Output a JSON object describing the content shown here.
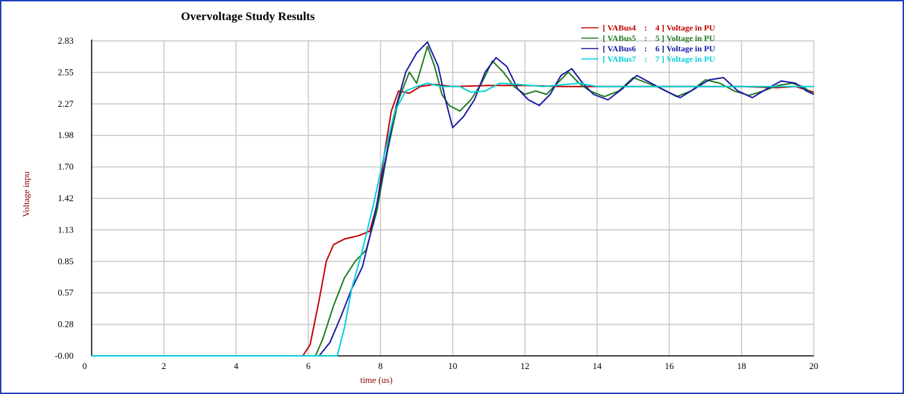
{
  "chart_data": {
    "type": "line",
    "title": "Overvoltage Study Results",
    "xlabel": "time (us)",
    "ylabel": "Voltage inpu",
    "xlim": [
      0,
      20
    ],
    "ylim": [
      -0.0,
      2.83
    ],
    "x_ticks": [
      0,
      2,
      4,
      6,
      8,
      10,
      12,
      14,
      16,
      18,
      20
    ],
    "y_ticks": [
      "-0.00",
      "0.28",
      "0.57",
      "0.85",
      "1.13",
      "1.42",
      "1.70",
      "1.98",
      "2.27",
      "2.55",
      "2.83"
    ],
    "grid": true,
    "legend_position": "top-right",
    "series": [
      {
        "name": "[ VABus4    :    4 ] Voltage in PU",
        "color": "#c00000",
        "points": [
          [
            0,
            0
          ],
          [
            5.85,
            0
          ],
          [
            6.05,
            0.1
          ],
          [
            6.3,
            0.5
          ],
          [
            6.5,
            0.85
          ],
          [
            6.7,
            1.0
          ],
          [
            7.0,
            1.05
          ],
          [
            7.4,
            1.08
          ],
          [
            7.7,
            1.12
          ],
          [
            7.9,
            1.35
          ],
          [
            8.1,
            1.8
          ],
          [
            8.3,
            2.2
          ],
          [
            8.5,
            2.38
          ],
          [
            8.8,
            2.36
          ],
          [
            9.1,
            2.42
          ],
          [
            9.5,
            2.44
          ],
          [
            10,
            2.42
          ],
          [
            11,
            2.43
          ],
          [
            12,
            2.43
          ],
          [
            13,
            2.42
          ],
          [
            14,
            2.42
          ],
          [
            15,
            2.42
          ],
          [
            16,
            2.42
          ],
          [
            17,
            2.42
          ],
          [
            18,
            2.42
          ],
          [
            19,
            2.41
          ],
          [
            19.5,
            2.42
          ],
          [
            20,
            2.37
          ]
        ]
      },
      {
        "name": "[ VABus5    :    5 ] Voltage in PU",
        "color": "#1f7a1f",
        "points": [
          [
            0,
            0
          ],
          [
            6.2,
            0
          ],
          [
            6.4,
            0.15
          ],
          [
            6.7,
            0.45
          ],
          [
            7.0,
            0.7
          ],
          [
            7.3,
            0.85
          ],
          [
            7.6,
            0.95
          ],
          [
            7.9,
            1.3
          ],
          [
            8.2,
            1.85
          ],
          [
            8.5,
            2.3
          ],
          [
            8.8,
            2.55
          ],
          [
            9.0,
            2.45
          ],
          [
            9.3,
            2.78
          ],
          [
            9.5,
            2.6
          ],
          [
            9.7,
            2.35
          ],
          [
            9.9,
            2.25
          ],
          [
            10.2,
            2.2
          ],
          [
            10.5,
            2.3
          ],
          [
            10.8,
            2.45
          ],
          [
            11.1,
            2.65
          ],
          [
            11.4,
            2.55
          ],
          [
            11.7,
            2.42
          ],
          [
            12.0,
            2.35
          ],
          [
            12.3,
            2.38
          ],
          [
            12.6,
            2.35
          ],
          [
            12.9,
            2.45
          ],
          [
            13.2,
            2.55
          ],
          [
            13.5,
            2.45
          ],
          [
            13.8,
            2.38
          ],
          [
            14.2,
            2.33
          ],
          [
            14.6,
            2.38
          ],
          [
            15.0,
            2.5
          ],
          [
            15.4,
            2.45
          ],
          [
            15.8,
            2.4
          ],
          [
            16.2,
            2.33
          ],
          [
            16.6,
            2.38
          ],
          [
            17.0,
            2.48
          ],
          [
            17.4,
            2.45
          ],
          [
            17.8,
            2.38
          ],
          [
            18.2,
            2.34
          ],
          [
            18.6,
            2.38
          ],
          [
            19.0,
            2.43
          ],
          [
            19.4,
            2.45
          ],
          [
            19.7,
            2.42
          ],
          [
            20,
            2.35
          ]
        ]
      },
      {
        "name": "[ VABus6    :    6 ] Voltage in PU",
        "color": "#1a1aa6",
        "points": [
          [
            0,
            0
          ],
          [
            6.3,
            0
          ],
          [
            6.6,
            0.12
          ],
          [
            6.9,
            0.35
          ],
          [
            7.2,
            0.6
          ],
          [
            7.5,
            0.8
          ],
          [
            7.8,
            1.2
          ],
          [
            8.1,
            1.7
          ],
          [
            8.4,
            2.2
          ],
          [
            8.7,
            2.55
          ],
          [
            9.0,
            2.72
          ],
          [
            9.3,
            2.82
          ],
          [
            9.6,
            2.6
          ],
          [
            9.8,
            2.3
          ],
          [
            10.0,
            2.05
          ],
          [
            10.3,
            2.15
          ],
          [
            10.6,
            2.3
          ],
          [
            10.9,
            2.55
          ],
          [
            11.2,
            2.68
          ],
          [
            11.5,
            2.6
          ],
          [
            11.8,
            2.4
          ],
          [
            12.1,
            2.3
          ],
          [
            12.4,
            2.25
          ],
          [
            12.7,
            2.35
          ],
          [
            13.0,
            2.52
          ],
          [
            13.3,
            2.58
          ],
          [
            13.6,
            2.45
          ],
          [
            13.9,
            2.35
          ],
          [
            14.3,
            2.3
          ],
          [
            14.7,
            2.4
          ],
          [
            15.1,
            2.52
          ],
          [
            15.5,
            2.45
          ],
          [
            15.9,
            2.38
          ],
          [
            16.3,
            2.32
          ],
          [
            16.7,
            2.4
          ],
          [
            17.1,
            2.48
          ],
          [
            17.5,
            2.5
          ],
          [
            17.9,
            2.38
          ],
          [
            18.3,
            2.32
          ],
          [
            18.7,
            2.4
          ],
          [
            19.1,
            2.47
          ],
          [
            19.5,
            2.45
          ],
          [
            19.8,
            2.38
          ],
          [
            20,
            2.35
          ]
        ]
      },
      {
        "name": "[ VABus7    :    7 ] Voltage in PU",
        "color": "#00d0d8",
        "points": [
          [
            0,
            0
          ],
          [
            6.8,
            0
          ],
          [
            7.0,
            0.25
          ],
          [
            7.2,
            0.6
          ],
          [
            7.5,
            0.95
          ],
          [
            7.8,
            1.35
          ],
          [
            8.1,
            1.8
          ],
          [
            8.4,
            2.2
          ],
          [
            8.7,
            2.38
          ],
          [
            9.0,
            2.42
          ],
          [
            9.3,
            2.45
          ],
          [
            9.7,
            2.42
          ],
          [
            10.2,
            2.42
          ],
          [
            10.5,
            2.37
          ],
          [
            10.9,
            2.38
          ],
          [
            11.3,
            2.45
          ],
          [
            11.8,
            2.44
          ],
          [
            12.5,
            2.42
          ],
          [
            13.5,
            2.45
          ],
          [
            14.0,
            2.42
          ],
          [
            15,
            2.42
          ],
          [
            16,
            2.42
          ],
          [
            17,
            2.42
          ],
          [
            18,
            2.42
          ],
          [
            19,
            2.42
          ],
          [
            20,
            2.42
          ]
        ]
      }
    ]
  }
}
